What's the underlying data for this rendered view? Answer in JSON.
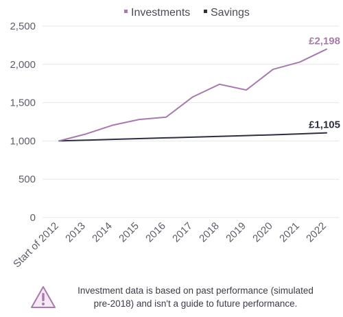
{
  "chart_data": {
    "type": "line",
    "categories": [
      "Start of 2012",
      "2013",
      "2014",
      "2015",
      "2016",
      "2017",
      "2018",
      "2019",
      "2020",
      "2021",
      "2022"
    ],
    "series": [
      {
        "name": "Investments",
        "color": "#a779ae",
        "values": [
          1000,
          1090,
          1205,
          1280,
          1310,
          1575,
          1740,
          1665,
          1935,
          2030,
          2198
        ],
        "end_label": "£2,198"
      },
      {
        "name": "Savings",
        "color": "#2b2f3f",
        "values": [
          1000,
          1010,
          1020,
          1030,
          1040,
          1050,
          1060,
          1070,
          1080,
          1092,
          1105
        ],
        "end_label": "£1,105"
      }
    ],
    "y_ticks": [
      "2,500",
      "2,000",
      "1,500",
      "1,000",
      "500",
      "0"
    ],
    "y_tick_values": [
      2500,
      2000,
      1500,
      1000,
      500,
      0
    ],
    "ylim": [
      0,
      2500
    ],
    "grid": "horizontal",
    "legend": "top-center"
  },
  "footnote": {
    "icon": "warning-triangle-icon",
    "line1": "Investment data is based on past performance (simulated",
    "line2": "pre-2018) and isn't a guide to future performance."
  }
}
